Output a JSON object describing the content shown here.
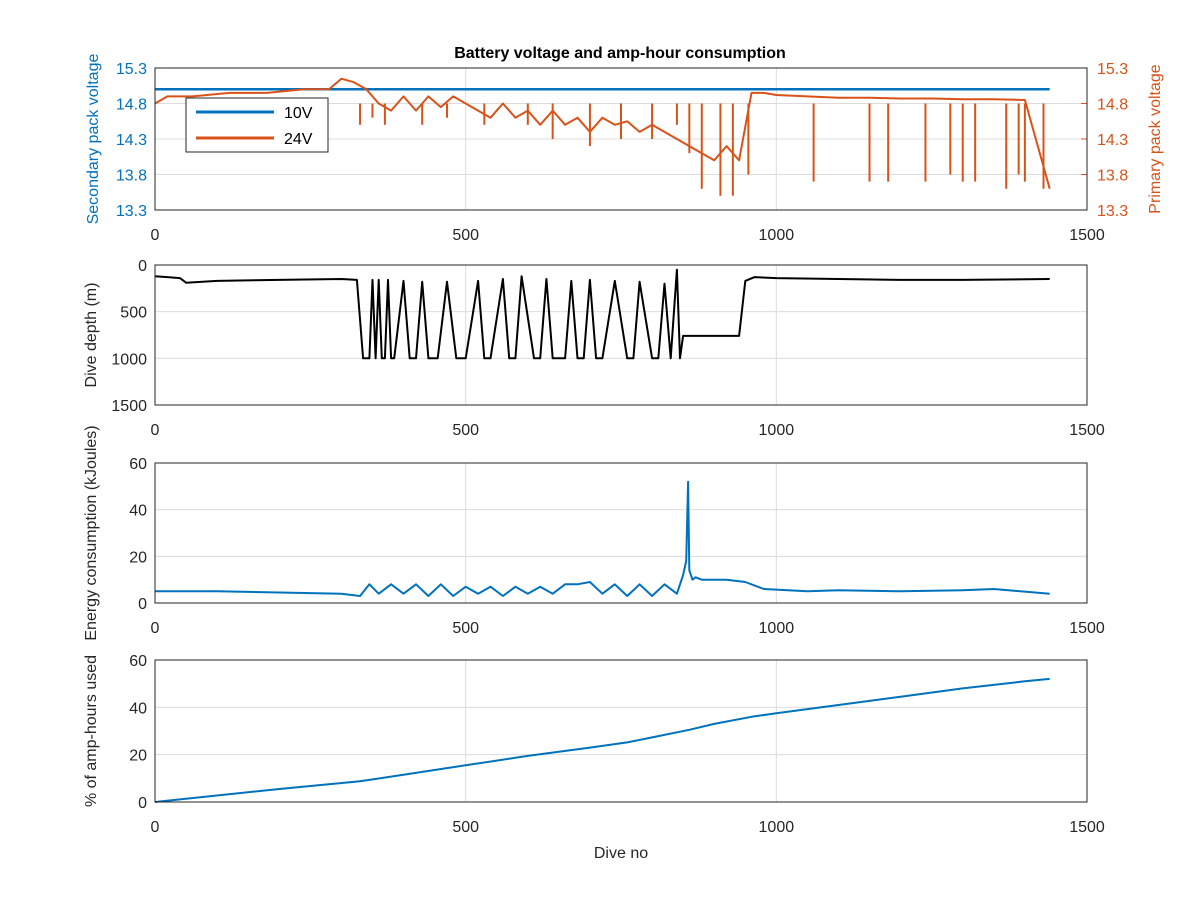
{
  "colors": {
    "secondary": "#0072BD",
    "primary": "#D95319",
    "depth": "#000000",
    "energy": "#0072BD",
    "amp_hours": "#0072BD",
    "grid": "#dcdcdc",
    "axis": "#262626"
  },
  "chart_data": [
    {
      "type": "line",
      "title": "Battery voltage and amp-hour consumption",
      "xlabel": "",
      "ylabel_left": "Secondary pack voltage",
      "ylabel_right": "Primary pack voltage",
      "xlim": [
        0,
        1500
      ],
      "ylim": [
        13.3,
        15.3
      ],
      "ylim_right": [
        13.3,
        15.3
      ],
      "xticks": [
        "0",
        "500",
        "1000",
        "1500"
      ],
      "yticks": [
        "15.3",
        "14.8",
        "14.3",
        "13.8",
        "13.3"
      ],
      "yticks_right": [
        "15.3",
        "14.8",
        "14.3",
        "13.8",
        "13.3"
      ],
      "grid": true,
      "legend_position": "top-left",
      "series": [
        {
          "name": "10V",
          "axis": "left",
          "x": [
            0,
            1440
          ],
          "y": [
            15.0,
            15.0
          ]
        },
        {
          "name": "24V",
          "axis": "right",
          "x": [
            0,
            20,
            60,
            120,
            180,
            240,
            280,
            300,
            320,
            340,
            360,
            380,
            400,
            420,
            440,
            460,
            480,
            500,
            520,
            540,
            560,
            580,
            600,
            620,
            640,
            660,
            680,
            700,
            720,
            740,
            760,
            780,
            800,
            820,
            840,
            860,
            880,
            900,
            920,
            940,
            960,
            980,
            1000,
            1050,
            1100,
            1150,
            1200,
            1250,
            1300,
            1350,
            1400,
            1440
          ],
          "y": [
            14.8,
            14.9,
            14.9,
            14.95,
            14.95,
            15.0,
            15.0,
            15.15,
            15.1,
            15.0,
            14.8,
            14.7,
            14.9,
            14.7,
            14.9,
            14.75,
            14.9,
            14.8,
            14.7,
            14.6,
            14.8,
            14.6,
            14.7,
            14.5,
            14.7,
            14.5,
            14.6,
            14.4,
            14.6,
            14.5,
            14.55,
            14.4,
            14.5,
            14.4,
            14.3,
            14.2,
            14.1,
            14.0,
            14.2,
            14.0,
            14.95,
            14.95,
            14.92,
            14.9,
            14.88,
            14.88,
            14.87,
            14.87,
            14.86,
            14.86,
            14.85,
            13.6
          ]
        },
        {
          "name": "24V dips",
          "axis": "right",
          "x": [
            330,
            350,
            370,
            430,
            470,
            530,
            600,
            640,
            700,
            750,
            800,
            840,
            860,
            880,
            910,
            930,
            955,
            1060,
            1150,
            1180,
            1240,
            1280,
            1300,
            1320,
            1370,
            1390,
            1400,
            1430
          ],
          "y": [
            14.5,
            14.6,
            14.5,
            14.5,
            14.6,
            14.5,
            14.5,
            14.3,
            14.2,
            14.3,
            14.3,
            14.5,
            14.1,
            13.6,
            13.5,
            13.5,
            13.8,
            13.7,
            13.7,
            13.7,
            13.7,
            13.8,
            13.7,
            13.7,
            13.6,
            13.8,
            13.7,
            13.6
          ]
        }
      ]
    },
    {
      "type": "line",
      "title": "",
      "xlabel": "",
      "ylabel": "Dive depth (m)",
      "xlim": [
        0,
        1500
      ],
      "ylim": [
        1500,
        0
      ],
      "xticks": [
        "0",
        "500",
        "1000",
        "1500"
      ],
      "yticks": [
        "0",
        "500",
        "1000",
        "1500"
      ],
      "grid": true,
      "series": [
        {
          "x": [
            0,
            20,
            40,
            50,
            100,
            200,
            300,
            325,
            335,
            345,
            350,
            355,
            360,
            365,
            370,
            375,
            380,
            385,
            400,
            410,
            420,
            430,
            440,
            455,
            470,
            485,
            500,
            520,
            530,
            540,
            560,
            570,
            580,
            590,
            610,
            620,
            630,
            640,
            650,
            660,
            670,
            680,
            690,
            700,
            710,
            720,
            740,
            760,
            770,
            780,
            800,
            810,
            820,
            830,
            840,
            845,
            850,
            855,
            860,
            870,
            940,
            950,
            965,
            1000,
            1100,
            1200,
            1300,
            1440
          ],
          "y": [
            120,
            130,
            140,
            190,
            170,
            160,
            150,
            160,
            1000,
            1000,
            160,
            1000,
            160,
            1000,
            1000,
            160,
            1000,
            1000,
            170,
            1000,
            1000,
            180,
            1000,
            1000,
            180,
            1000,
            1000,
            170,
            1000,
            1000,
            150,
            1000,
            1000,
            120,
            1000,
            1000,
            150,
            1000,
            1000,
            1000,
            170,
            1000,
            1000,
            160,
            1000,
            1000,
            170,
            1000,
            1000,
            180,
            1000,
            1000,
            200,
            1000,
            50,
            1000,
            760,
            760,
            760,
            760,
            760,
            170,
            130,
            140,
            150,
            160,
            160,
            150
          ]
        }
      ]
    },
    {
      "type": "line",
      "title": "",
      "xlabel": "",
      "ylabel": "Energy consumption (kJoules)",
      "xlim": [
        0,
        1500
      ],
      "ylim": [
        0,
        60
      ],
      "xticks": [
        "0",
        "500",
        "1000",
        "1500"
      ],
      "yticks": [
        "0",
        "20",
        "40",
        "60"
      ],
      "grid": true,
      "series": [
        {
          "x": [
            0,
            100,
            200,
            300,
            330,
            345,
            360,
            380,
            400,
            420,
            440,
            460,
            480,
            500,
            520,
            540,
            560,
            580,
            600,
            620,
            640,
            660,
            680,
            700,
            720,
            740,
            760,
            780,
            800,
            820,
            840,
            850,
            855,
            858,
            860,
            865,
            870,
            880,
            920,
            950,
            980,
            1050,
            1100,
            1200,
            1300,
            1350,
            1440
          ],
          "y": [
            5,
            5,
            4.5,
            4,
            3,
            8,
            4,
            8,
            4,
            8,
            3,
            8,
            3,
            7,
            4,
            7,
            3,
            7,
            4,
            7,
            4,
            8,
            8,
            9,
            4,
            8,
            3,
            8,
            3,
            8,
            4,
            12,
            18,
            52,
            14,
            10,
            11,
            10,
            10,
            9,
            6,
            5,
            5.5,
            5,
            5.5,
            6,
            4
          ]
        }
      ]
    },
    {
      "type": "line",
      "title": "",
      "xlabel": "Dive no",
      "ylabel": "% of amp-hours used",
      "xlim": [
        0,
        1500
      ],
      "ylim": [
        0,
        60
      ],
      "xticks": [
        "0",
        "500",
        "1000",
        "1500"
      ],
      "yticks": [
        "0",
        "20",
        "40",
        "60"
      ],
      "grid": true,
      "series": [
        {
          "x": [
            0,
            200,
            330,
            400,
            500,
            600,
            700,
            760,
            800,
            860,
            900,
            960,
            1000,
            1100,
            1200,
            1300,
            1400,
            1440
          ],
          "y": [
            0,
            5.5,
            8.8,
            11.5,
            15.5,
            19.5,
            23.0,
            25.2,
            27.3,
            30.5,
            33.0,
            36.0,
            37.5,
            41.0,
            44.5,
            48.0,
            51.0,
            52.0
          ]
        }
      ]
    }
  ],
  "legend": {
    "items": [
      {
        "label": "10V",
        "color": "#0072BD"
      },
      {
        "label": "24V",
        "color": "#D95319"
      }
    ]
  }
}
